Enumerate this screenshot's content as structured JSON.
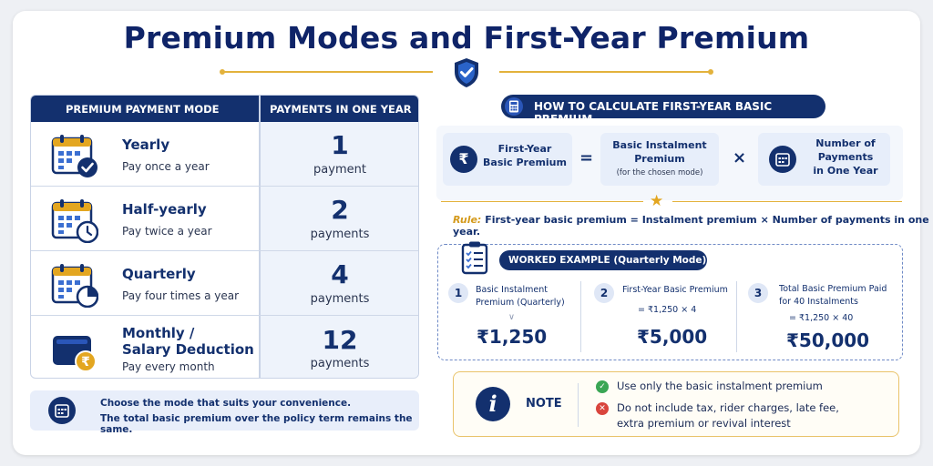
{
  "title": "Premium Modes and First-Year Premium",
  "table": {
    "headers": [
      "PREMIUM PAYMENT MODE",
      "PAYMENTS IN ONE YEAR"
    ],
    "rows": [
      {
        "mode": "Yearly",
        "desc": "Pay once a year",
        "count": "1",
        "unit": "payment",
        "icon": "calendar-check-icon"
      },
      {
        "mode": "Half-yearly",
        "desc": "Pay twice a year",
        "count": "2",
        "unit": "payments",
        "icon": "calendar-clock-icon"
      },
      {
        "mode": "Quarterly",
        "desc": "Pay four times a year",
        "count": "4",
        "unit": "payments",
        "icon": "calendar-quarter-icon"
      },
      {
        "mode_line1": "Monthly /",
        "mode_line2": "Salary Deduction",
        "desc": "Pay every month",
        "count": "12",
        "unit": "payments",
        "icon": "wallet-rupee-icon"
      }
    ]
  },
  "tip": {
    "line1": "Choose the mode that suits your convenience.",
    "line2": "The total basic premium over the policy term remains the same."
  },
  "calc": {
    "heading": "HOW TO CALCULATE FIRST-YEAR BASIC PREMIUM",
    "box1": {
      "line1": "First-Year",
      "line2": "Basic Premium",
      "symbol": "₹"
    },
    "equals": "=",
    "box2": {
      "line1": "Basic Instalment",
      "line2": "Premium",
      "note": "(for the chosen mode)"
    },
    "times": "×",
    "box3": {
      "line1": "Number of",
      "line2": "Payments",
      "line3": "in One Year"
    },
    "rule_label": "Rule:",
    "rule_text": "First-year basic premium = Instalment premium × Number of payments in one year."
  },
  "worked": {
    "heading": "WORKED EXAMPLE (Quarterly Mode)",
    "steps": [
      {
        "n": "1",
        "label1": "Basic Instalment",
        "label2": "Premium (Quarterly)",
        "calc": "∨",
        "value": "₹1,250"
      },
      {
        "n": "2",
        "label1": "First-Year Basic Premium",
        "label2": "",
        "calc": "= ₹1,250 × 4",
        "value": "₹5,000"
      },
      {
        "n": "3",
        "label1": "Total Basic Premium Paid",
        "label2": "for 40 Instalments",
        "calc": "= ₹1,250 × 40",
        "value": "₹50,000"
      }
    ]
  },
  "note": {
    "label": "NOTE",
    "do": "Use only the basic instalment premium",
    "dont_line1": "Do not include tax, rider charges, late fee,",
    "dont_line2": "extra premium or revival interest"
  },
  "colors": {
    "navy": "#13306e",
    "gold": "#e3b23c",
    "ok": "#3aa655",
    "bad": "#d9453d"
  }
}
